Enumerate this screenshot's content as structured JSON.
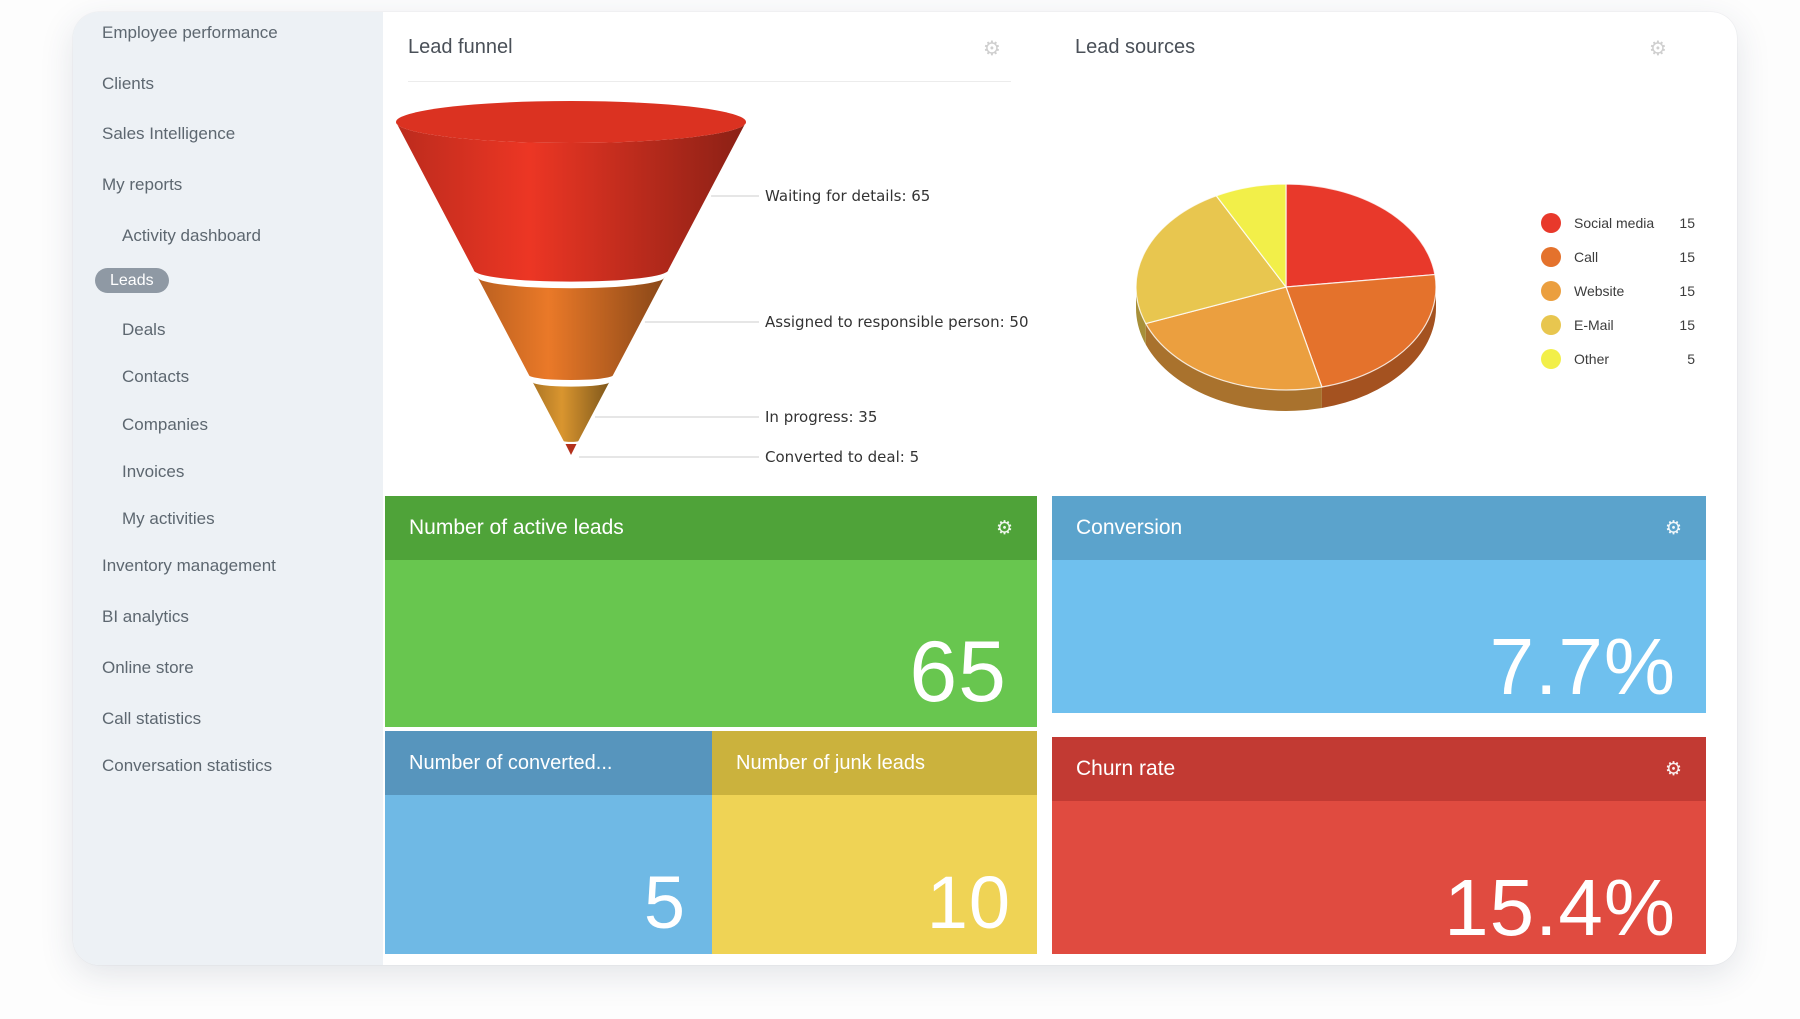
{
  "sidebar": {
    "items": [
      {
        "label": "Employee performance",
        "indent": 0,
        "active": false
      },
      {
        "label": "Clients",
        "indent": 0,
        "active": false
      },
      {
        "label": "Sales Intelligence",
        "indent": 0,
        "active": false
      },
      {
        "label": "My reports",
        "indent": 0,
        "active": false
      },
      {
        "label": "Activity dashboard",
        "indent": 1,
        "active": false
      },
      {
        "label": "Leads",
        "indent": 1,
        "active": true
      },
      {
        "label": "Deals",
        "indent": 1,
        "active": false
      },
      {
        "label": "Contacts",
        "indent": 1,
        "active": false
      },
      {
        "label": "Companies",
        "indent": 1,
        "active": false
      },
      {
        "label": "Invoices",
        "indent": 1,
        "active": false
      },
      {
        "label": "My activities",
        "indent": 1,
        "active": false
      },
      {
        "label": "Inventory management",
        "indent": 0,
        "active": false
      },
      {
        "label": "BI analytics",
        "indent": 0,
        "active": false
      },
      {
        "label": "Online store",
        "indent": 0,
        "active": false
      },
      {
        "label": "Call statistics",
        "indent": 0,
        "active": false
      },
      {
        "label": "Conversation statistics",
        "indent": 0,
        "active": false
      }
    ]
  },
  "panels": {
    "lead_funnel": {
      "title": "Lead funnel",
      "gear_icon": "⚙"
    },
    "lead_sources": {
      "title": "Lead sources",
      "gear_icon": "⚙"
    }
  },
  "chart_data": [
    {
      "type": "funnel",
      "title": "Lead funnel",
      "stages": [
        {
          "label": "Waiting for details",
          "value": 65,
          "color": "#df3322"
        },
        {
          "label": "Assigned to responsible person",
          "value": 50,
          "color": "#dd7226"
        },
        {
          "label": "In progress",
          "value": 35,
          "color": "#cd8d2c"
        },
        {
          "label": "Converted to deal",
          "value": 5,
          "color": "#b3311c"
        }
      ],
      "callout_line_color": "#cccccc"
    },
    {
      "type": "pie",
      "title": "Lead sources",
      "style": "3d",
      "legend_position": "right",
      "categories": [
        "Social media",
        "Call",
        "Website",
        "E-Mail",
        "Other"
      ],
      "values": [
        15,
        15,
        15,
        15,
        5
      ],
      "colors": [
        "#e8392b",
        "#e4722c",
        "#eb9f3f",
        "#e8c64f",
        "#f2ef49"
      ]
    }
  ],
  "tiles": {
    "active_leads": {
      "title": "Number of active leads",
      "value": "65",
      "header_color": "#4fa339",
      "body_color": "#68c64f",
      "gear_icon": "⚙"
    },
    "converted": {
      "title": "Number of converted...",
      "value": "5",
      "header_color": "#5795bd",
      "body_color": "#6fb9e5"
    },
    "junk": {
      "title": "Number of junk leads",
      "value": "10",
      "header_color": "#cbb23d",
      "body_color": "#efd355"
    },
    "conversion": {
      "title": "Conversion",
      "value": "7.7%",
      "header_color": "#5ba3cc",
      "body_color": "#6fc0ee",
      "gear_icon": "⚙"
    },
    "churn": {
      "title": "Churn rate",
      "value": "15.4%",
      "header_color": "#c23a33",
      "body_color": "#e04b40",
      "gear_icon": "⚙"
    }
  }
}
